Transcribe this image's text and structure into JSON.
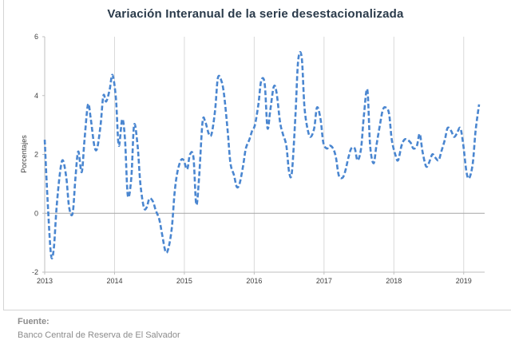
{
  "chart_data": {
    "type": "line",
    "title": "Variación Interanual de la serie desestacionalizada",
    "ylabel": "Porcentajes",
    "xlabel": "",
    "xlim": [
      2013.0,
      2019.3
    ],
    "ylim": [
      -2,
      6
    ],
    "y_ticks": [
      -2,
      0,
      2,
      4,
      6
    ],
    "x_ticks": [
      "2013",
      "2014",
      "2015",
      "2016",
      "2017",
      "2018",
      "2019"
    ],
    "grid": "vertical",
    "line_style": "dashed",
    "line_color": "#4a86d0",
    "series": [
      {
        "name": "",
        "points": [
          [
            2013.0,
            2.5
          ],
          [
            2013.04,
            0.5
          ],
          [
            2013.09,
            -1.4
          ],
          [
            2013.13,
            -1.2
          ],
          [
            2013.17,
            0.2
          ],
          [
            2013.22,
            1.4
          ],
          [
            2013.26,
            1.8
          ],
          [
            2013.31,
            1.2
          ],
          [
            2013.35,
            0.2
          ],
          [
            2013.4,
            0.0
          ],
          [
            2013.44,
            1.2
          ],
          [
            2013.48,
            2.1
          ],
          [
            2013.53,
            1.4
          ],
          [
            2013.57,
            2.5
          ],
          [
            2013.62,
            3.7
          ],
          [
            2013.66,
            3.2
          ],
          [
            2013.71,
            2.3
          ],
          [
            2013.75,
            2.2
          ],
          [
            2013.8,
            3.0
          ],
          [
            2013.84,
            4.0
          ],
          [
            2013.88,
            3.8
          ],
          [
            2013.93,
            4.2
          ],
          [
            2013.97,
            4.7
          ],
          [
            2014.02,
            3.9
          ],
          [
            2014.06,
            2.3
          ],
          [
            2014.11,
            3.2
          ],
          [
            2014.15,
            2.5
          ],
          [
            2014.19,
            0.6
          ],
          [
            2014.24,
            1.2
          ],
          [
            2014.28,
            3.0
          ],
          [
            2014.33,
            2.3
          ],
          [
            2014.37,
            1.0
          ],
          [
            2014.42,
            0.2
          ],
          [
            2014.46,
            0.2
          ],
          [
            2014.5,
            0.5
          ],
          [
            2014.55,
            0.4
          ],
          [
            2014.59,
            0.1
          ],
          [
            2014.64,
            -0.2
          ],
          [
            2014.68,
            -0.7
          ],
          [
            2014.73,
            -1.3
          ],
          [
            2014.77,
            -1.2
          ],
          [
            2014.82,
            -0.5
          ],
          [
            2014.86,
            0.7
          ],
          [
            2014.9,
            1.4
          ],
          [
            2014.95,
            1.8
          ],
          [
            2014.99,
            1.8
          ],
          [
            2015.04,
            1.5
          ],
          [
            2015.08,
            2.0
          ],
          [
            2015.13,
            1.9
          ],
          [
            2015.17,
            0.3
          ],
          [
            2015.21,
            1.2
          ],
          [
            2015.26,
            3.1
          ],
          [
            2015.3,
            3.1
          ],
          [
            2015.35,
            2.7
          ],
          [
            2015.39,
            2.7
          ],
          [
            2015.44,
            3.5
          ],
          [
            2015.48,
            4.6
          ],
          [
            2015.53,
            4.5
          ],
          [
            2015.57,
            4.0
          ],
          [
            2015.62,
            2.8
          ],
          [
            2015.66,
            1.7
          ],
          [
            2015.71,
            1.3
          ],
          [
            2015.75,
            0.9
          ],
          [
            2015.79,
            1.0
          ],
          [
            2015.84,
            1.6
          ],
          [
            2015.88,
            2.2
          ],
          [
            2015.93,
            2.5
          ],
          [
            2015.97,
            2.8
          ],
          [
            2016.01,
            3.0
          ],
          [
            2016.06,
            3.7
          ],
          [
            2016.1,
            4.5
          ],
          [
            2016.15,
            4.4
          ],
          [
            2016.19,
            2.9
          ],
          [
            2016.23,
            3.5
          ],
          [
            2016.28,
            4.3
          ],
          [
            2016.32,
            4.1
          ],
          [
            2016.37,
            3.1
          ],
          [
            2016.41,
            2.7
          ],
          [
            2016.46,
            2.3
          ],
          [
            2016.5,
            1.4
          ],
          [
            2016.54,
            1.4
          ],
          [
            2016.59,
            3.3
          ],
          [
            2016.63,
            5.2
          ],
          [
            2016.68,
            5.3
          ],
          [
            2016.72,
            3.6
          ],
          [
            2016.77,
            2.8
          ],
          [
            2016.81,
            2.6
          ],
          [
            2016.86,
            2.9
          ],
          [
            2016.9,
            3.6
          ],
          [
            2016.95,
            3.2
          ],
          [
            2016.99,
            2.4
          ],
          [
            2017.04,
            2.2
          ],
          [
            2017.08,
            2.3
          ],
          [
            2017.13,
            2.2
          ],
          [
            2017.17,
            1.9
          ],
          [
            2017.21,
            1.3
          ],
          [
            2017.26,
            1.2
          ],
          [
            2017.3,
            1.4
          ],
          [
            2017.35,
            1.9
          ],
          [
            2017.39,
            2.2
          ],
          [
            2017.44,
            2.2
          ],
          [
            2017.48,
            1.8
          ],
          [
            2017.53,
            2.2
          ],
          [
            2017.57,
            3.3
          ],
          [
            2017.62,
            4.2
          ],
          [
            2017.66,
            2.3
          ],
          [
            2017.71,
            1.7
          ],
          [
            2017.75,
            2.3
          ],
          [
            2017.8,
            3.0
          ],
          [
            2017.84,
            3.5
          ],
          [
            2017.88,
            3.6
          ],
          [
            2017.93,
            3.4
          ],
          [
            2017.97,
            2.5
          ],
          [
            2018.02,
            2.0
          ],
          [
            2018.06,
            1.8
          ],
          [
            2018.11,
            2.3
          ],
          [
            2018.15,
            2.5
          ],
          [
            2018.19,
            2.5
          ],
          [
            2018.24,
            2.4
          ],
          [
            2018.28,
            2.2
          ],
          [
            2018.33,
            2.3
          ],
          [
            2018.37,
            2.7
          ],
          [
            2018.41,
            2.1
          ],
          [
            2018.46,
            1.6
          ],
          [
            2018.5,
            1.7
          ],
          [
            2018.55,
            2.0
          ],
          [
            2018.59,
            1.9
          ],
          [
            2018.64,
            1.8
          ],
          [
            2018.68,
            2.1
          ],
          [
            2018.73,
            2.5
          ],
          [
            2018.77,
            2.9
          ],
          [
            2018.82,
            2.8
          ],
          [
            2018.86,
            2.6
          ],
          [
            2018.9,
            2.7
          ],
          [
            2018.95,
            2.9
          ],
          [
            2018.99,
            2.4
          ],
          [
            2019.04,
            1.4
          ],
          [
            2019.08,
            1.2
          ],
          [
            2019.13,
            1.7
          ],
          [
            2019.17,
            2.8
          ],
          [
            2019.22,
            3.7
          ]
        ]
      }
    ]
  },
  "footer": {
    "heading": "Fuente:",
    "source": "Banco Central de Reserva de El Salvador"
  }
}
